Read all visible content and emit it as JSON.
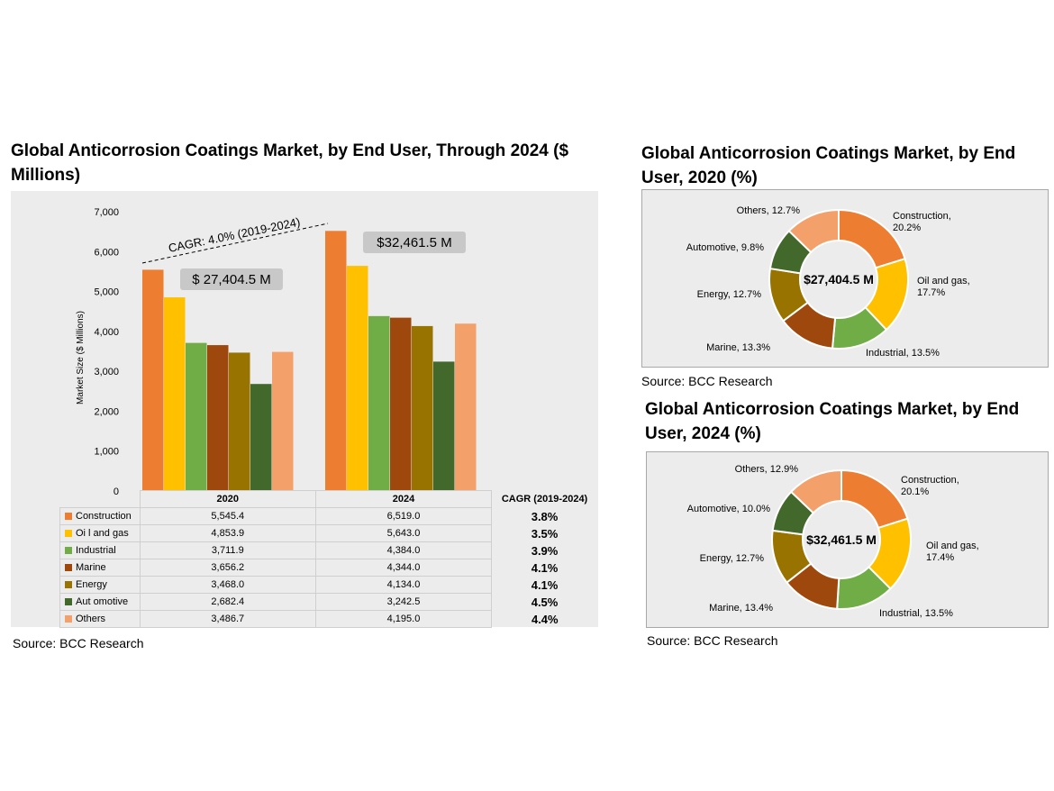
{
  "bar_chart": {
    "title": "Global Anticorrosion Coatings Market, by End User, Through 2024 ($ Millions)",
    "source": "Source: BCC Research",
    "cagr_header": "CAGR (2019-2024)",
    "cagr_annotation": "CAGR: 4.0% (2019-2024)",
    "total_labels": [
      "$ 27,404.5 M",
      "$32,461.5 M"
    ],
    "table_values": [
      [
        "5,545.4",
        "6,519.0",
        "3.8%"
      ],
      [
        "4,853.9",
        "5,643.0",
        "3.5%"
      ],
      [
        "3,711.9",
        "4,384.0",
        "3.9%"
      ],
      [
        "3,656.2",
        "4,344.0",
        "4.1%"
      ],
      [
        "3,468.0",
        "4,134.0",
        "4.1%"
      ],
      [
        "2,682.4",
        "3,242.5",
        "4.5%"
      ],
      [
        "3,486.7",
        "4,195.0",
        "4.4%"
      ]
    ],
    "legend_labels": [
      "Construction",
      "Oi l and gas",
      "Industrial",
      "Marine",
      "Energy",
      "Aut omotive",
      "Others"
    ]
  },
  "pie_2020": {
    "title": "Global Anticorrosion Coatings Market, by End User, 2020 (%)",
    "center_label": "$27,404.5 M",
    "source": "Source: BCC Research",
    "labels": [
      [
        "Construction,",
        "20.2%"
      ],
      [
        "Oil and gas,",
        "17.7%"
      ],
      [
        "Industrial, 13.5%"
      ],
      [
        "Marine, 13.3%"
      ],
      [
        "Energy, 12.7%"
      ],
      [
        "Automotive, 9.8%"
      ],
      [
        "Others, 12.7%"
      ]
    ]
  },
  "pie_2024": {
    "title": "Global Anticorrosion Coatings Market, by End User, 2024 (%)",
    "center_label": "$32,461.5 M",
    "source": "Source: BCC Research",
    "labels": [
      [
        "Construction,",
        "20.1%"
      ],
      [
        "Oil and gas,",
        "17.4%"
      ],
      [
        "Industrial, 13.5%"
      ],
      [
        "Marine, 13.4%"
      ],
      [
        "Energy, 12.7%"
      ],
      [
        "Automotive, 10.0%"
      ],
      [
        "Others, 12.9%"
      ]
    ]
  },
  "chart_data": [
    {
      "type": "bar",
      "title": "Global Anticorrosion Coatings Market, by End User, Through 2024 ($ Millions)",
      "categories": [
        "2020",
        "2024"
      ],
      "ylabel": "Market Size ($ Millions)",
      "ylim": [
        0,
        7000
      ],
      "yticks": [
        0,
        1000,
        2000,
        3000,
        4000,
        5000,
        6000,
        7000
      ],
      "ytick_labels": [
        "0",
        "1,000",
        "2,000",
        "3,000",
        "4,000",
        "5,000",
        "6,000",
        "7,000"
      ],
      "grid": false,
      "legend": "table-bottom",
      "series": [
        {
          "name": "Construction",
          "values": [
            5545.4,
            6519.0
          ],
          "cagr": 3.8,
          "color": "#ed7d31"
        },
        {
          "name": "Oil and gas",
          "values": [
            4853.9,
            5643.0
          ],
          "cagr": 3.5,
          "color": "#ffc000"
        },
        {
          "name": "Industrial",
          "values": [
            3711.9,
            4384.0
          ],
          "cagr": 3.9,
          "color": "#70ad47"
        },
        {
          "name": "Marine",
          "values": [
            3656.2,
            4344.0
          ],
          "cagr": 4.1,
          "color": "#9e480e"
        },
        {
          "name": "Energy",
          "values": [
            3468.0,
            4134.0
          ],
          "cagr": 4.1,
          "color": "#997300"
        },
        {
          "name": "Automotive",
          "values": [
            2682.4,
            3242.5
          ],
          "cagr": 4.5,
          "color": "#43682b"
        },
        {
          "name": "Others",
          "values": [
            3486.7,
            4195.0
          ],
          "cagr": 4.4,
          "color": "#f4a06a"
        }
      ]
    },
    {
      "type": "pie",
      "title": "Global Anticorrosion Coatings Market, by End User, 2020 (%)",
      "categories": [
        "Construction",
        "Oil and gas",
        "Industrial",
        "Marine",
        "Energy",
        "Automotive",
        "Others"
      ],
      "values": [
        20.2,
        17.7,
        13.5,
        13.3,
        12.7,
        9.8,
        12.7
      ],
      "colors": [
        "#ed7d31",
        "#ffc000",
        "#70ad47",
        "#9e480e",
        "#997300",
        "#43682b",
        "#f4a06a"
      ],
      "style": "donut"
    },
    {
      "type": "pie",
      "title": "Global Anticorrosion Coatings Market, by End User, 2024 (%)",
      "categories": [
        "Construction",
        "Oil and gas",
        "Industrial",
        "Marine",
        "Energy",
        "Automotive",
        "Others"
      ],
      "values": [
        20.1,
        17.4,
        13.5,
        13.4,
        12.7,
        10.0,
        12.9
      ],
      "colors": [
        "#ed7d31",
        "#ffc000",
        "#70ad47",
        "#9e480e",
        "#997300",
        "#43682b",
        "#f4a06a"
      ],
      "style": "donut"
    }
  ]
}
